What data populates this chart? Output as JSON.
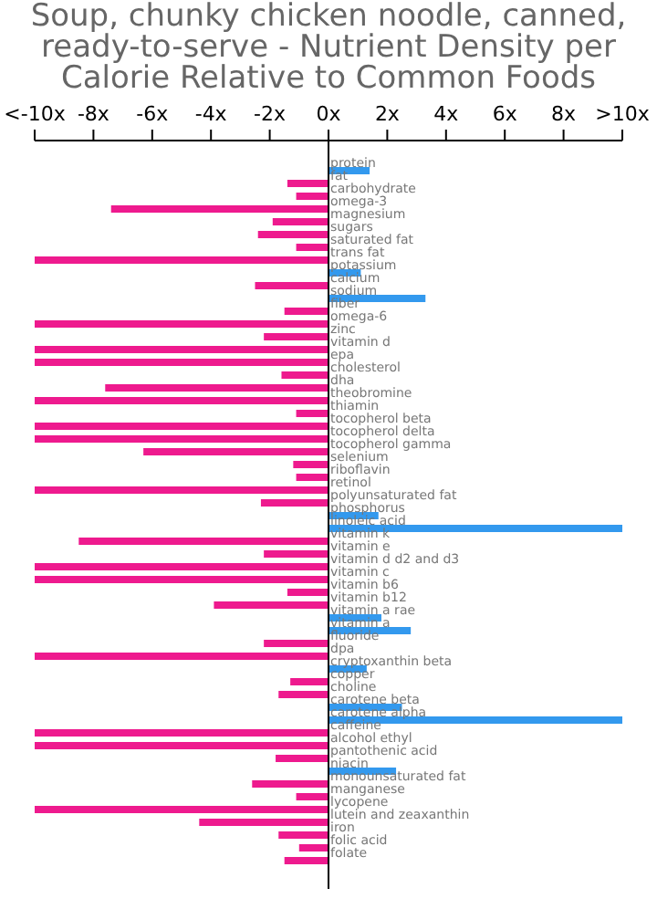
{
  "chart_data": {
    "type": "bar",
    "orientation": "horizontal",
    "title": "Soup, chunky chicken noodle, canned, ready-to-serve - Nutrient Density per Calorie Relative to Common Foods",
    "categories": [
      "protein",
      "fat",
      "carbohydrate",
      "omega-3",
      "magnesium",
      "sugars",
      "saturated fat",
      "trans fat",
      "potassium",
      "calcium",
      "sodium",
      "fiber",
      "omega-6",
      "zinc",
      "vitamin d",
      "epa",
      "cholesterol",
      "dha",
      "theobromine",
      "thiamin",
      "tocopherol beta",
      "tocopherol delta",
      "tocopherol gamma",
      "selenium",
      "riboflavin",
      "retinol",
      "polyunsaturated fat",
      "phosphorus",
      "linoleic acid",
      "vitamin k",
      "vitamin e",
      "vitamin d d2 and d3",
      "vitamin c",
      "vitamin b6",
      "vitamin b12",
      "vitamin a rae",
      "vitamin a",
      "fluoride",
      "dpa",
      "cryptoxanthin beta",
      "copper",
      "choline",
      "carotene beta",
      "carotene alpha",
      "caffeine",
      "alcohol ethyl",
      "pantothenic acid",
      "niacin",
      "monounsaturated fat",
      "manganese",
      "lycopene",
      "lutein and zeaxanthin",
      "iron",
      "folic acid",
      "folate"
    ],
    "values": [
      1.4,
      -1.4,
      -1.1,
      -7.4,
      -1.9,
      -2.4,
      -1.1,
      -10,
      1.1,
      -2.5,
      3.3,
      -1.5,
      -10,
      -2.2,
      -10,
      -10,
      -1.6,
      -7.6,
      -10,
      -1.1,
      -10,
      -10,
      -6.3,
      -1.2,
      -1.1,
      -10,
      -2.3,
      1.7,
      10,
      -8.5,
      -2.2,
      -10,
      -10,
      -1.4,
      -3.9,
      1.8,
      2.8,
      -2.2,
      -10,
      1.3,
      -1.3,
      -1.7,
      2.5,
      10,
      -10,
      -10,
      -1.8,
      2.3,
      -2.6,
      -1.1,
      -10,
      -4.4,
      -1.7,
      -1.0,
      -1.5
    ],
    "colors": [
      "#3399ee",
      "#ee1a8e",
      "#ee1a8e",
      "#ee1a8e",
      "#ee1a8e",
      "#ee1a8e",
      "#ee1a8e",
      "#ee1a8e",
      "#3399ee",
      "#ee1a8e",
      "#3399ee",
      "#ee1a8e",
      "#ee1a8e",
      "#ee1a8e",
      "#ee1a8e",
      "#ee1a8e",
      "#ee1a8e",
      "#ee1a8e",
      "#ee1a8e",
      "#ee1a8e",
      "#ee1a8e",
      "#ee1a8e",
      "#ee1a8e",
      "#ee1a8e",
      "#ee1a8e",
      "#ee1a8e",
      "#ee1a8e",
      "#3399ee",
      "#3399ee",
      "#ee1a8e",
      "#ee1a8e",
      "#ee1a8e",
      "#ee1a8e",
      "#ee1a8e",
      "#ee1a8e",
      "#3399ee",
      "#3399ee",
      "#ee1a8e",
      "#ee1a8e",
      "#3399ee",
      "#ee1a8e",
      "#ee1a8e",
      "#3399ee",
      "#3399ee",
      "#ee1a8e",
      "#ee1a8e",
      "#ee1a8e",
      "#3399ee",
      "#ee1a8e",
      "#ee1a8e",
      "#ee1a8e",
      "#ee1a8e",
      "#ee1a8e",
      "#ee1a8e",
      "#ee1a8e"
    ],
    "xlim": [
      -10,
      10
    ],
    "xticks": [
      {
        "value": -10,
        "label": "<-10x"
      },
      {
        "value": -8,
        "label": "-8x"
      },
      {
        "value": -6,
        "label": "-6x"
      },
      {
        "value": -4,
        "label": "-4x"
      },
      {
        "value": -2,
        "label": "-2x"
      },
      {
        "value": 0,
        "label": "0x"
      },
      {
        "value": 2,
        "label": "2x"
      },
      {
        "value": 4,
        "label": "4x"
      },
      {
        "value": 6,
        "label": "6x"
      },
      {
        "value": 8,
        "label": "8x"
      },
      {
        "value": 10,
        "label": ">10x"
      }
    ]
  }
}
